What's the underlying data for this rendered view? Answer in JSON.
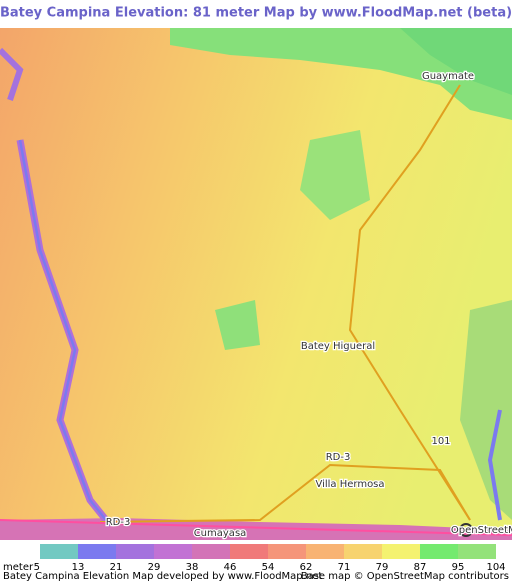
{
  "header": {
    "title": "Batey Campina Elevation: 81 meter Map by www.FloodMap.net (beta)"
  },
  "map": {
    "labels": [
      "Guaymate",
      "Batey Higueral",
      "101",
      "RD-3",
      "Villa Hermosa",
      "Cumayasa",
      "RD-3"
    ]
  },
  "legend": {
    "unit": "meter",
    "stops": [
      5,
      13,
      21,
      29,
      38,
      46,
      54,
      62,
      71,
      79,
      87,
      95,
      104
    ],
    "colors": [
      "#72c9c2",
      "#7b7aef",
      "#a472de",
      "#c272d4",
      "#d373b7",
      "#f07a7a",
      "#f5957a",
      "#f8b373",
      "#f7d36f",
      "#f4f270",
      "#74ea6f",
      "#93e27a"
    ]
  },
  "footer": {
    "credit": "Batey Campina Elevation Map developed by www.FloodMap.net",
    "basemap": "Base map © OpenStreetMap contributors",
    "logo": "OpenStreetMap"
  }
}
